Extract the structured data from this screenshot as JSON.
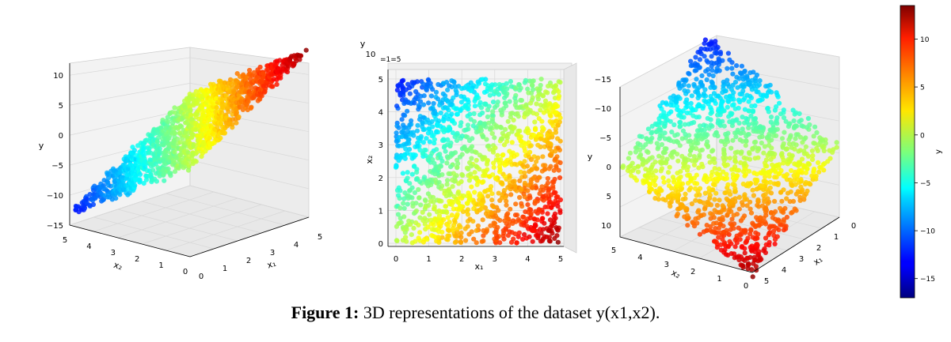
{
  "caption": {
    "label": "Figure 1:",
    "text": "3D representations of the dataset y(x1,x2)."
  },
  "colormap": "jet",
  "chart_data": [
    {
      "type": "scatter",
      "panel": "left",
      "xlabel": "x₁",
      "ylabel": "x₂",
      "zlabel": "y",
      "x_ticks": [
        "0",
        "1",
        "2",
        "3",
        "4",
        "5"
      ],
      "y_ticks": [
        "0",
        "1",
        "2",
        "3",
        "4",
        "5"
      ],
      "z_ticks": [
        "−15",
        "−10",
        "−5",
        "0",
        "5",
        "10"
      ],
      "xlim": [
        0,
        5
      ],
      "ylim": [
        0,
        5
      ],
      "zlim": [
        -15,
        12
      ],
      "grid": true
    },
    {
      "type": "scatter",
      "panel": "middle",
      "xlabel": "x₁",
      "ylabel": "x₂",
      "zlabel": "y",
      "x_ticks": [
        "0",
        "1",
        "2",
        "3",
        "4",
        "5"
      ],
      "y_ticks": [
        "0",
        "1",
        "2",
        "3",
        "4",
        "5"
      ],
      "z_ticks": [
        "10"
      ],
      "xlim": [
        0,
        5
      ],
      "ylim": [
        0,
        5
      ],
      "grid": true
    },
    {
      "type": "scatter",
      "panel": "right",
      "xlabel": "x₁",
      "ylabel": "x₂",
      "zlabel": "y",
      "x_ticks": [
        "0",
        "1",
        "2",
        "3",
        "4",
        "5"
      ],
      "y_ticks": [
        "0",
        "1",
        "2",
        "3",
        "4",
        "5"
      ],
      "z_ticks": [
        "−15",
        "−10",
        "−5",
        "0",
        "5",
        "10"
      ],
      "xlim": [
        0,
        5
      ],
      "ylim": [
        0,
        5
      ],
      "zlim": [
        -15,
        12
      ],
      "grid": true
    },
    {
      "type": "colorbar",
      "label": "y",
      "ticks": [
        "10",
        "5",
        "0",
        "−5",
        "−10",
        "−15"
      ],
      "range": [
        -17,
        13.5
      ]
    }
  ]
}
